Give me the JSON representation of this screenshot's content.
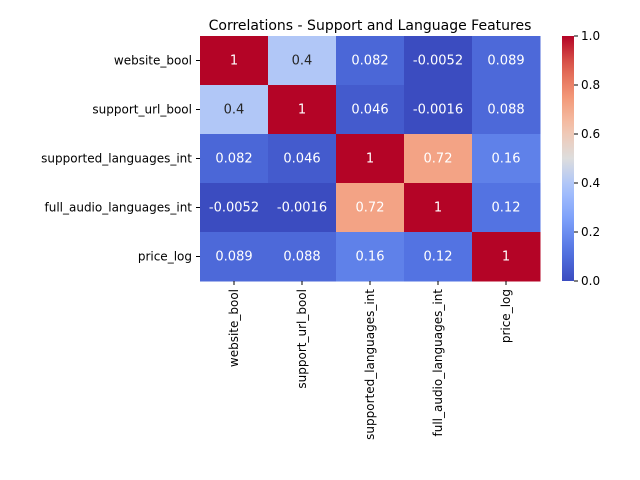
{
  "chart_data": {
    "type": "heatmap",
    "title": "Correlations - Support and Language Features",
    "xlabel": "",
    "ylabel": "",
    "row_labels": [
      "website_bool",
      "support_url_bool",
      "supported_languages_int",
      "full_audio_languages_int",
      "price_log"
    ],
    "col_labels": [
      "website_bool",
      "support_url_bool",
      "supported_languages_int",
      "full_audio_languages_int",
      "price_log"
    ],
    "values": [
      [
        1,
        0.4,
        0.082,
        -0.0052,
        0.089
      ],
      [
        0.4,
        1,
        0.046,
        -0.0016,
        0.088
      ],
      [
        0.082,
        0.046,
        1,
        0.72,
        0.16
      ],
      [
        -0.0052,
        -0.0016,
        0.72,
        1,
        0.12
      ],
      [
        0.089,
        0.088,
        0.16,
        0.12,
        1
      ]
    ],
    "annotations": [
      [
        "1",
        "0.4",
        "0.082",
        "-0.0052",
        "0.089"
      ],
      [
        "0.4",
        "1",
        "0.046",
        "-0.0016",
        "0.088"
      ],
      [
        "0.082",
        "0.046",
        "1",
        "0.72",
        "0.16"
      ],
      [
        "-0.0052",
        "-0.0016",
        "0.72",
        "1",
        "0.12"
      ],
      [
        "0.089",
        "0.088",
        "0.16",
        "0.12",
        "1"
      ]
    ],
    "colormap": "coolwarm",
    "colorbar": {
      "vmin": 0.0,
      "vmax": 1.0,
      "ticks": [
        "0.0",
        "0.2",
        "0.4",
        "0.6",
        "0.8",
        "1.0"
      ]
    }
  }
}
